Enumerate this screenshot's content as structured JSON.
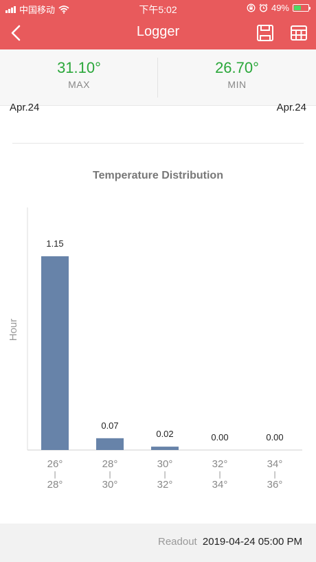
{
  "status_bar": {
    "carrier": "中国移动",
    "time": "下午5:02",
    "battery_percent": "49%",
    "battery_level": 0.49,
    "icons": [
      "signal-icon",
      "wifi-icon",
      "rotation-lock-icon",
      "alarm-icon",
      "battery-icon"
    ]
  },
  "nav": {
    "title": "Logger",
    "icons": [
      "back-chevron-icon",
      "save-floppy-icon",
      "table-grid-icon"
    ]
  },
  "stats": {
    "max": {
      "value": "31.10°",
      "label": "MAX"
    },
    "min": {
      "value": "26.70°",
      "label": "MIN"
    }
  },
  "dates": {
    "start": "Apr.24",
    "end": "Apr.24"
  },
  "colors": {
    "accent": "#e85a5c",
    "bar": "#6783a9",
    "stat_value": "#2aa73a"
  },
  "chart_data": {
    "type": "bar",
    "title": "Temperature Distribution",
    "ylabel": "Hour",
    "xlabel": "",
    "categories": [
      {
        "low": "26°",
        "sep": "|",
        "high": "28°"
      },
      {
        "low": "28°",
        "sep": "|",
        "high": "30°"
      },
      {
        "low": "30°",
        "sep": "|",
        "high": "32°"
      },
      {
        "low": "32°",
        "sep": "|",
        "high": "34°"
      },
      {
        "low": "34°",
        "sep": "|",
        "high": "36°"
      }
    ],
    "values": [
      1.15,
      0.07,
      0.02,
      0.0,
      0.0
    ],
    "value_labels": [
      "1.15",
      "0.07",
      "0.02",
      "0.00",
      "0.00"
    ],
    "ylim": [
      0,
      1.15
    ],
    "grid": false
  },
  "footer": {
    "readout_label": "Readout",
    "readout_value": "2019-04-24 05:00 PM"
  }
}
